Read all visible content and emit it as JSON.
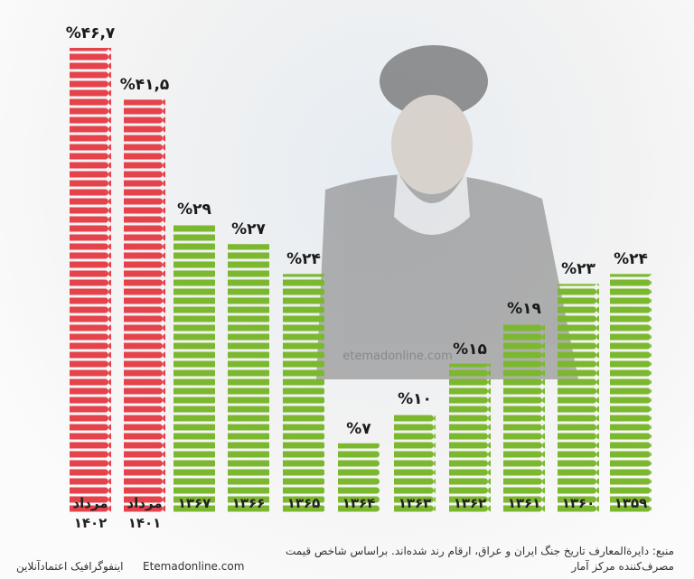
{
  "chart_data": {
    "type": "bar",
    "categories": [
      "مرداد ۱۴۰۲",
      "مرداد ۱۴۰۱",
      "۱۳۶۷",
      "۱۳۶۶",
      "۱۳۶۵",
      "۱۳۶۴",
      "۱۳۶۳",
      "۱۳۶۲",
      "۱۳۶۱",
      "۱۳۶۰",
      "۱۳۵۹"
    ],
    "values": [
      46.7,
      41.5,
      29,
      27,
      24,
      7,
      10,
      15,
      19,
      23,
      24
    ],
    "value_labels": [
      "%۴۶,۷",
      "%۴۱,۵",
      "%۲۹",
      "%۲۷",
      "%۲۴",
      "%۷",
      "%۱۰",
      "%۱۵",
      "%۱۹",
      "%۲۳",
      "%۲۴"
    ],
    "colors": [
      "#e5434c",
      "#e5434c",
      "#7cb82f",
      "#7cb82f",
      "#7cb82f",
      "#7cb82f",
      "#7cb82f",
      "#7cb82f",
      "#7cb82f",
      "#7cb82f",
      "#7cb82f"
    ],
    "watermark": "etemadonline.com",
    "source": "منبع: دایرةالمعارف تاریخ جنگ ایران و عراق، ارقام رند شده‌اند. براساس شاخص قیمت مصرف‌کننده مرکز آمار",
    "website": "Etemadonline.com",
    "credit": "اینفوگرافیک اعتمادآنلاین"
  }
}
